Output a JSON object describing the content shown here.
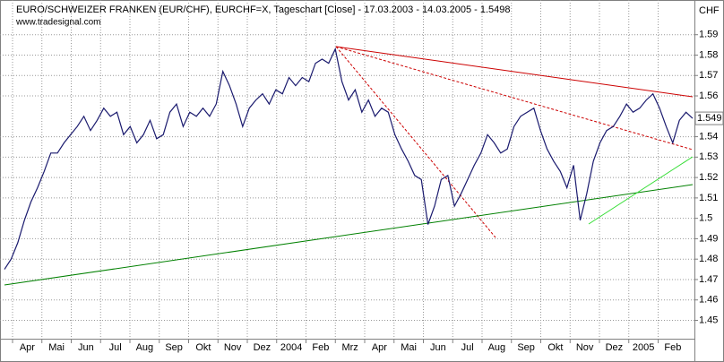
{
  "chart_data": {
    "type": "line",
    "title": "EURO/SCHWEIZER FRANKEN (EUR/CHF), EURCHF=X, Tageschart [Close] - 17.03.2003 - 14.03.2005 - 1.5498",
    "subtitle": "www.tradesignal.com",
    "y_axis_label": "CHF",
    "xtick_labels": [
      "Apr",
      "Mai",
      "Jun",
      "Jul",
      "Aug",
      "Sep",
      "Okt",
      "Nov",
      "Dez",
      "2004",
      "Feb",
      "Mrz",
      "Apr",
      "Mai",
      "Jun",
      "Jul",
      "Aug",
      "Sep",
      "Okt",
      "Nov",
      "Dez",
      "2005",
      "Feb"
    ],
    "ylim": [
      1.441,
      1.607
    ],
    "yticks": [
      1.45,
      1.46,
      1.47,
      1.48,
      1.49,
      1.5,
      1.51,
      1.52,
      1.53,
      1.54,
      1.56,
      1.57,
      1.58,
      1.59
    ],
    "last_value_marker": 1.549,
    "grid": true,
    "series": [
      {
        "name": "EUR/CHF",
        "color": "#1a1a6e",
        "values": [
          1.475,
          1.48,
          1.488,
          1.499,
          1.508,
          1.515,
          1.523,
          1.532,
          1.532,
          1.537,
          1.541,
          1.545,
          1.55,
          1.543,
          1.548,
          1.554,
          1.55,
          1.552,
          1.541,
          1.545,
          1.537,
          1.541,
          1.548,
          1.539,
          1.541,
          1.552,
          1.556,
          1.545,
          1.552,
          1.55,
          1.554,
          1.55,
          1.556,
          1.572,
          1.565,
          1.556,
          1.545,
          1.554,
          1.558,
          1.561,
          1.556,
          1.563,
          1.561,
          1.569,
          1.565,
          1.569,
          1.567,
          1.576,
          1.578,
          1.576,
          1.583,
          1.567,
          1.558,
          1.563,
          1.552,
          1.558,
          1.55,
          1.554,
          1.552,
          1.541,
          1.534,
          1.528,
          1.521,
          1.519,
          1.497,
          1.506,
          1.519,
          1.521,
          1.506,
          1.512,
          1.519,
          1.526,
          1.532,
          1.541,
          1.537,
          1.532,
          1.534,
          1.545,
          1.55,
          1.552,
          1.554,
          1.543,
          1.534,
          1.528,
          1.523,
          1.515,
          1.526,
          1.499,
          1.512,
          1.528,
          1.537,
          1.543,
          1.545,
          1.55,
          1.556,
          1.552,
          1.554,
          1.558,
          1.561,
          1.554,
          1.545,
          1.537,
          1.548,
          1.552,
          1.549
        ]
      }
    ]
  }
}
